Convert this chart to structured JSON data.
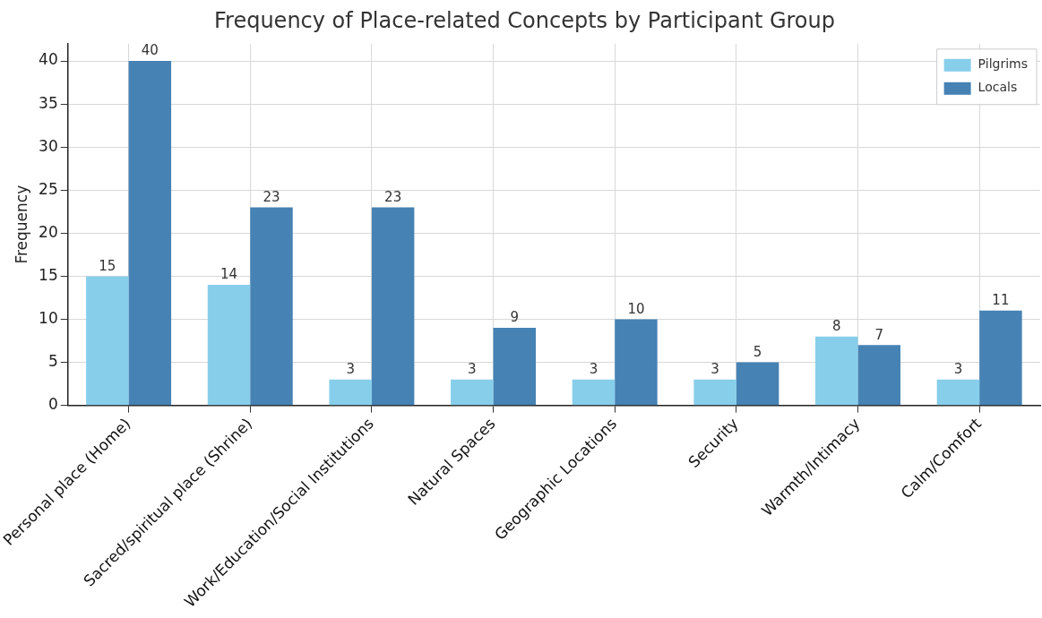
{
  "chart_data": {
    "type": "bar",
    "title": "Frequency of Place-related Concepts by Participant Group",
    "ylabel": "Frequency",
    "categories": [
      "Personal place (Home)",
      "Sacred/spiritual place (Shrine)",
      "Work/Education/Social Institutions",
      "Natural Spaces",
      "Geographic Locations",
      "Security",
      "Warmth/Intimacy",
      "Calm/Comfort"
    ],
    "series": [
      {
        "name": "Pilgrims",
        "color": "#87ceeb",
        "values": [
          15,
          14,
          3,
          3,
          3,
          3,
          8,
          3
        ]
      },
      {
        "name": "Locals",
        "color": "#4682b4",
        "values": [
          40,
          23,
          23,
          9,
          10,
          5,
          7,
          11
        ]
      }
    ],
    "ylim": [
      0,
      42
    ],
    "yticks": [
      0,
      5,
      10,
      15,
      20,
      25,
      30,
      35,
      40
    ],
    "grid": true,
    "legend": "top right",
    "data_labels": true
  }
}
